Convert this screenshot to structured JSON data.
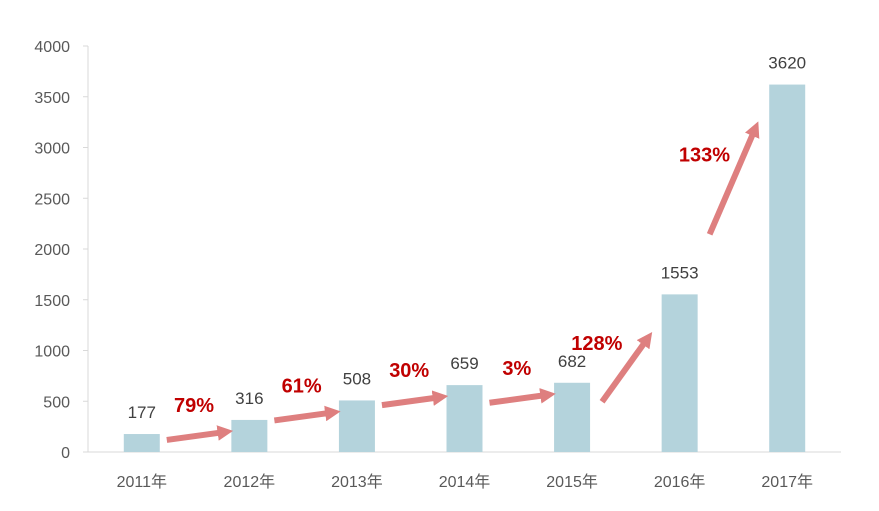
{
  "chart_data": {
    "type": "bar",
    "categories": [
      "2011年",
      "2012年",
      "2013年",
      "2014年",
      "2015年",
      "2016年",
      "2017年"
    ],
    "values": [
      177,
      316,
      508,
      659,
      682,
      1553,
      3620
    ],
    "ylim": [
      0,
      4000
    ],
    "yticks": [
      0,
      500,
      1000,
      1500,
      2000,
      2500,
      3000,
      3500,
      4000
    ],
    "grid": false,
    "legend": "none",
    "growth_annotations": [
      {
        "from": "2011年",
        "to": "2012年",
        "label": "79%"
      },
      {
        "from": "2012年",
        "to": "2013年",
        "label": "61%"
      },
      {
        "from": "2013年",
        "to": "2014年",
        "label": "30%"
      },
      {
        "from": "2014年",
        "to": "2015年",
        "label": "3%"
      },
      {
        "from": "2015年",
        "to": "2016年",
        "label": "128%"
      },
      {
        "from": "2016年",
        "to": "2017年",
        "label": "133%"
      }
    ],
    "colors": {
      "bar": "#b4d3dc",
      "arrow": "#de7f7f",
      "growth_text": "#c00000",
      "axis": "#d9d9d9"
    }
  }
}
